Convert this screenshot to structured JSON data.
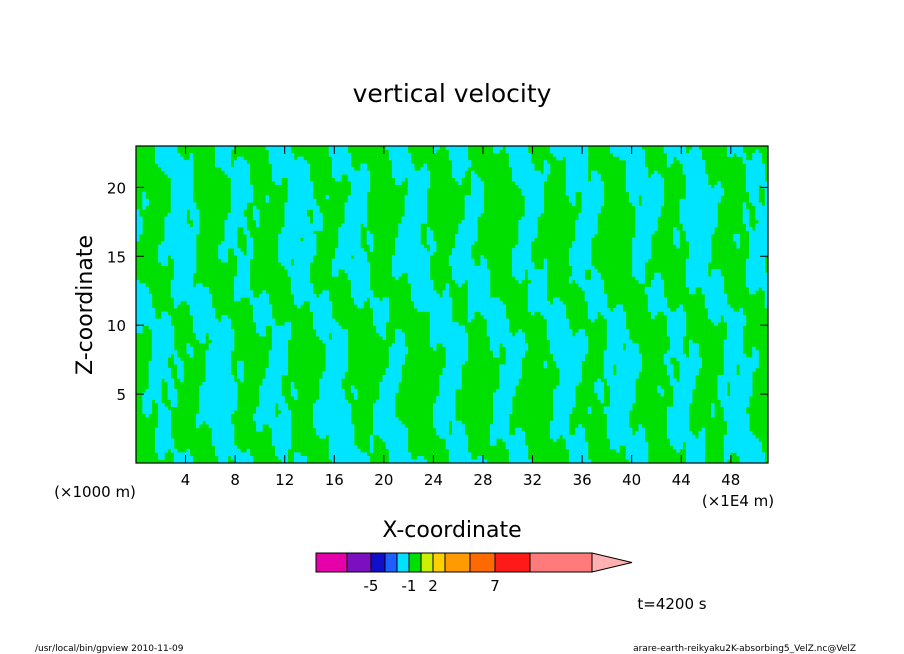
{
  "chart_data": {
    "type": "heatmap",
    "title": "vertical velocity",
    "xlabel": "X-coordinate",
    "ylabel": "Z-coordinate",
    "x_unit_label": "(×1E4 m)",
    "y_unit_label": "(×1000 m)",
    "xlim": [
      0,
      51
    ],
    "ylim": [
      0,
      23
    ],
    "x_ticks": [
      "4",
      "8",
      "12",
      "16",
      "20",
      "24",
      "28",
      "32",
      "36",
      "40",
      "44",
      "48"
    ],
    "x_tick_values": [
      4,
      8,
      12,
      16,
      20,
      24,
      28,
      32,
      36,
      40,
      44,
      48
    ],
    "y_ticks": [
      "5",
      "10",
      "15",
      "20"
    ],
    "y_tick_values": [
      5,
      10,
      15,
      20
    ],
    "field_levels": [
      {
        "range": "< 0",
        "color": "#00e5ff"
      },
      {
        "range": ">= 0",
        "color": "#00e000"
      }
    ],
    "colorbar": {
      "colors": [
        "#e600aa",
        "#7a10c0",
        "#1010c8",
        "#1e60ff",
        "#00e0ff",
        "#00e000",
        "#c8f000",
        "#ffd000",
        "#ff9a00",
        "#ff6a00",
        "#ff1a1a",
        "#ff7a7a",
        "#ffb0b0"
      ],
      "tick_labels": [
        "-5",
        "-1",
        "2",
        "7"
      ]
    },
    "time_label": "t=4200 s",
    "footer_left": "/usr/local/bin/gpview   2010-11-09",
    "footer_right": "arare-earth-reikyaku2K-absorbing5_VelZ.nc@VelZ"
  }
}
